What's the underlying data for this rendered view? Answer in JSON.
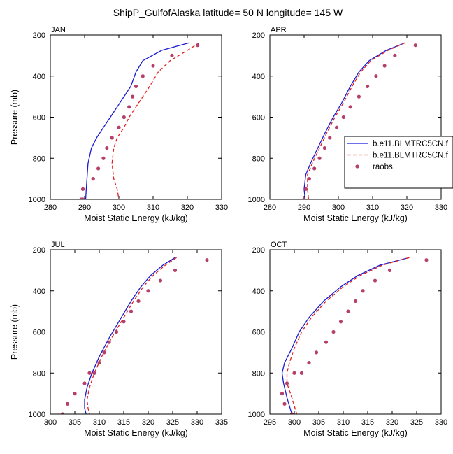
{
  "figure": {
    "title": "ShipP_GulfofAlaska  latitude= 50 N longitude= 145 W"
  },
  "legend": {
    "entries": [
      {
        "name": "b.e11.BLMTRC5CN.f",
        "style": "solid",
        "color": "#1a1ad6"
      },
      {
        "name": "b.e11.BLMTRC5CN.f",
        "style": "dashed",
        "color": "#e0201c"
      },
      {
        "name": "raobs",
        "style": "marker",
        "color": "#b5406a"
      }
    ]
  },
  "chart_data": [
    {
      "type": "line",
      "panel": "JAN",
      "xlabel": "Moist Static Energy (kJ/kg)",
      "ylabel": "Pressure (mb)",
      "xlim": [
        280,
        330
      ],
      "xticks": [
        280,
        290,
        300,
        310,
        320,
        330
      ],
      "ylim": [
        200,
        1000
      ],
      "yticks": [
        200,
        400,
        600,
        800,
        1000
      ],
      "y_reversed": true,
      "series": [
        {
          "name": "b.e11.BLMTRC5CN.f",
          "style": "solid",
          "x": [
            320.5,
            312.5,
            307,
            305,
            303.5,
            301.5,
            299.5,
            297.5,
            295.5,
            293.5,
            292,
            291,
            290.7,
            290.5,
            290.3
          ],
          "y": [
            238,
            275,
            325,
            380,
            450,
            500,
            550,
            600,
            650,
            700,
            750,
            825,
            900,
            950,
            1000
          ]
        },
        {
          "name": "b.e11.BLMTRC5CN.f",
          "style": "dashed",
          "x": [
            323.5,
            320,
            315,
            311.5,
            309,
            307,
            305,
            303,
            301.5,
            299.5,
            298.5,
            298,
            298.5,
            299.5,
            300
          ],
          "y": [
            238,
            275,
            325,
            380,
            450,
            500,
            550,
            600,
            650,
            700,
            750,
            825,
            900,
            950,
            1000
          ]
        },
        {
          "name": "raobs",
          "style": "marker",
          "x": [
            323,
            315.5,
            310,
            307,
            305,
            304,
            303,
            301.5,
            300,
            298,
            296.5,
            295.5,
            294,
            292.5,
            289.5,
            289,
            289.5
          ],
          "y": [
            250,
            300,
            350,
            400,
            450,
            500,
            550,
            600,
            650,
            700,
            750,
            800,
            850,
            900,
            950,
            1000,
            1000
          ]
        }
      ]
    },
    {
      "type": "line",
      "panel": "APR",
      "xlabel": "Moist Static Energy (kJ/kg)",
      "ylabel": "",
      "xlim": [
        280,
        330
      ],
      "xticks": [
        280,
        290,
        300,
        310,
        320,
        330
      ],
      "ylim": [
        200,
        1000
      ],
      "yticks": [
        200,
        400,
        600,
        800,
        1000
      ],
      "y_reversed": true,
      "series": [
        {
          "name": "b.e11.BLMTRC5CN.f",
          "style": "solid",
          "x": [
            319.5,
            314,
            309,
            306,
            303.5,
            301,
            298.5,
            296,
            294,
            292,
            290.5,
            290,
            290.3
          ],
          "y": [
            238,
            275,
            325,
            380,
            450,
            530,
            600,
            680,
            750,
            820,
            880,
            950,
            1000
          ]
        },
        {
          "name": "b.e11.BLMTRC5CN.f",
          "style": "dashed",
          "x": [
            319.5,
            314.5,
            309.5,
            306.5,
            304,
            301.5,
            299,
            296.5,
            294.5,
            292.5,
            291,
            291,
            291.3
          ],
          "y": [
            238,
            275,
            325,
            380,
            450,
            530,
            600,
            680,
            750,
            820,
            880,
            950,
            1000
          ]
        },
        {
          "name": "raobs",
          "style": "marker",
          "x": [
            322.5,
            316.5,
            313.5,
            311,
            308.5,
            306,
            303.5,
            301.5,
            299.5,
            297.5,
            296,
            294.5,
            293,
            291.5,
            290.5,
            290,
            290
          ],
          "y": [
            250,
            300,
            350,
            400,
            450,
            500,
            550,
            600,
            650,
            700,
            750,
            800,
            850,
            900,
            950,
            1000,
            1000
          ]
        }
      ]
    },
    {
      "type": "line",
      "panel": "JUL",
      "xlabel": "Moist Static Energy (kJ/kg)",
      "ylabel": "Pressure (mb)",
      "xlim": [
        300,
        335
      ],
      "xticks": [
        300,
        305,
        310,
        315,
        320,
        325,
        330,
        335
      ],
      "ylim": [
        200,
        1000
      ],
      "yticks": [
        200,
        400,
        600,
        800,
        1000
      ],
      "y_reversed": true,
      "series": [
        {
          "name": "b.e11.BLMTRC5CN.f",
          "style": "solid",
          "x": [
            325.5,
            323,
            320.5,
            318.5,
            316.5,
            314,
            312,
            310,
            308.5,
            307.5,
            307,
            307,
            307.3
          ],
          "y": [
            238,
            275,
            325,
            380,
            450,
            550,
            630,
            720,
            800,
            870,
            930,
            970,
            1000
          ]
        },
        {
          "name": "b.e11.BLMTRC5CN.f",
          "style": "dashed",
          "x": [
            325.8,
            323.5,
            321,
            319,
            317,
            314.5,
            312.5,
            310.5,
            309,
            308,
            307.5,
            307.7,
            308
          ],
          "y": [
            238,
            275,
            325,
            380,
            450,
            550,
            630,
            720,
            800,
            870,
            930,
            970,
            1000
          ]
        },
        {
          "name": "raobs",
          "style": "marker",
          "x": [
            332,
            325.5,
            322.5,
            320,
            318,
            316.5,
            315,
            313.5,
            312,
            311,
            310,
            309,
            308,
            307,
            305,
            303.5,
            302.5
          ],
          "y": [
            250,
            300,
            350,
            400,
            450,
            500,
            550,
            600,
            650,
            700,
            750,
            800,
            800,
            850,
            900,
            950,
            1000
          ]
        }
      ]
    },
    {
      "type": "line",
      "panel": "OCT",
      "xlabel": "Moist Static Energy (kJ/kg)",
      "ylabel": "",
      "xlim": [
        295,
        330
      ],
      "xticks": [
        295,
        300,
        305,
        310,
        315,
        320,
        325,
        330
      ],
      "ylim": [
        200,
        1000
      ],
      "yticks": [
        200,
        400,
        600,
        800,
        1000
      ],
      "y_reversed": true,
      "series": [
        {
          "name": "b.e11.BLMTRC5CN.f",
          "style": "solid",
          "x": [
            323.5,
            317.5,
            313,
            309.5,
            306,
            303,
            301,
            299.5,
            298,
            297.5,
            297.8,
            298.5,
            299.5
          ],
          "y": [
            238,
            275,
            325,
            380,
            450,
            530,
            600,
            680,
            750,
            800,
            850,
            920,
            1000
          ]
        },
        {
          "name": "b.e11.BLMTRC5CN.f",
          "style": "dashed",
          "x": [
            323.5,
            318,
            313.5,
            310,
            306.5,
            303.5,
            301.5,
            300,
            299,
            298.5,
            298.5,
            299.5,
            300.5
          ],
          "y": [
            238,
            275,
            325,
            380,
            450,
            530,
            600,
            680,
            750,
            800,
            850,
            920,
            1000
          ]
        },
        {
          "name": "raobs",
          "style": "marker",
          "x": [
            327,
            319.5,
            316.5,
            314,
            312.5,
            311,
            309.5,
            308,
            306.5,
            304.5,
            303,
            301.5,
            300,
            298.5,
            297.5,
            298,
            299.5
          ],
          "y": [
            250,
            300,
            350,
            400,
            450,
            500,
            550,
            600,
            650,
            700,
            750,
            800,
            800,
            850,
            900,
            950,
            1000
          ]
        }
      ]
    }
  ]
}
